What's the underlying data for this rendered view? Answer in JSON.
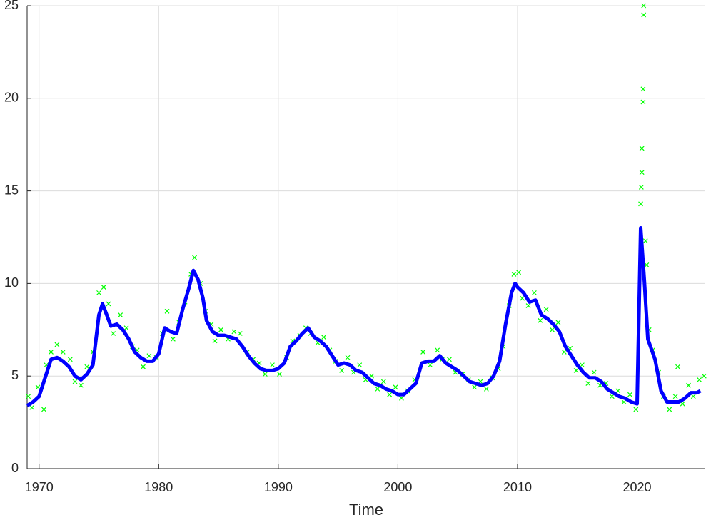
{
  "chart_data": {
    "type": "line",
    "xlabel": "Time",
    "xlim": [
      1969,
      2025.7
    ],
    "ylim": [
      0,
      25
    ],
    "xticks": [
      1970,
      1980,
      1990,
      2000,
      2010,
      2020
    ],
    "yticks": [
      0,
      5,
      10,
      15,
      20,
      25
    ],
    "grid": true,
    "series": [
      {
        "type": "scatter",
        "color": "#00ff00",
        "x": [
          1969.1,
          1969.4,
          1969.9,
          1970.4,
          1970.6,
          1971.0,
          1971.5,
          1972.0,
          1972.6,
          1973.0,
          1973.5,
          1974.0,
          1974.5,
          1975.0,
          1975.4,
          1975.8,
          1976.2,
          1976.8,
          1977.3,
          1977.8,
          1978.2,
          1978.7,
          1979.2,
          1979.8,
          1980.3,
          1980.7,
          1981.2,
          1981.7,
          1982.2,
          1982.7,
          1983.0,
          1983.5,
          1983.9,
          1984.4,
          1984.7,
          1985.2,
          1985.8,
          1986.3,
          1986.8,
          1987.4,
          1987.9,
          1988.4,
          1988.9,
          1989.5,
          1990.1,
          1990.7,
          1991.2,
          1991.8,
          1992.3,
          1992.7,
          1993.3,
          1993.8,
          1994.3,
          1994.8,
          1995.3,
          1995.8,
          1996.3,
          1996.8,
          1997.3,
          1997.8,
          1998.3,
          1998.8,
          1999.3,
          1999.8,
          2000.3,
          2000.8,
          2001.4,
          2002.1,
          2002.7,
          2003.3,
          2003.7,
          2004.3,
          2004.8,
          2005.4,
          2005.9,
          2006.4,
          2006.9,
          2007.4,
          2007.9,
          2008.4,
          2008.8,
          2009.3,
          2009.7,
          2010.1,
          2010.4,
          2010.9,
          2011.4,
          2011.9,
          2012.4,
          2012.9,
          2013.4,
          2013.9,
          2014.4,
          2014.9,
          2015.4,
          2015.9,
          2016.4,
          2016.9,
          2017.4,
          2017.9,
          2018.4,
          2018.9,
          2019.4,
          2019.9,
          2020.3,
          2020.35,
          2020.4,
          2020.4,
          2020.5,
          2020.5,
          2020.55,
          2020.55,
          2020.7,
          2020.8,
          2021.0,
          2021.3,
          2021.8,
          2022.2,
          2022.7,
          2023.2,
          2023.4,
          2023.8,
          2024.3,
          2024.7,
          2025.2,
          2025.6
        ],
        "values": [
          3.9,
          3.3,
          4.4,
          3.2,
          5.6,
          6.3,
          6.7,
          6.3,
          5.9,
          4.7,
          4.5,
          5.5,
          6.3,
          9.5,
          9.8,
          8.9,
          7.3,
          8.3,
          7.6,
          6.6,
          6.4,
          5.5,
          6.1,
          6.0,
          7.3,
          8.5,
          7.0,
          7.9,
          9.0,
          10.5,
          11.4,
          10.0,
          8.5,
          7.8,
          6.9,
          7.5,
          7.0,
          7.4,
          7.3,
          6.3,
          5.9,
          5.7,
          5.1,
          5.6,
          5.1,
          6.0,
          6.9,
          7.2,
          7.6,
          7.3,
          6.8,
          7.1,
          6.4,
          5.8,
          5.3,
          6.0,
          5.2,
          5.6,
          4.8,
          5.0,
          4.3,
          4.7,
          4.0,
          4.4,
          3.8,
          4.2,
          4.8,
          6.3,
          5.6,
          6.4,
          5.9,
          5.9,
          5.2,
          5.1,
          4.8,
          4.4,
          4.7,
          4.3,
          4.9,
          5.4,
          6.6,
          8.8,
          10.5,
          10.6,
          9.2,
          8.8,
          9.5,
          8.0,
          8.6,
          7.5,
          7.9,
          6.3,
          6.5,
          5.3,
          5.6,
          4.6,
          5.2,
          4.5,
          4.6,
          3.9,
          4.2,
          3.6,
          4.0,
          3.2,
          14.3,
          15.2,
          16.0,
          17.3,
          19.8,
          20.5,
          24.5,
          25.0,
          12.3,
          11.0,
          7.5,
          6.4,
          5.2,
          3.9,
          3.2,
          3.9,
          5.5,
          3.5,
          4.5,
          3.9,
          4.8,
          5.0
        ]
      },
      {
        "type": "line",
        "color": "#0000ff",
        "x": [
          1969.0,
          1969.5,
          1970.0,
          1970.5,
          1971.0,
          1971.5,
          1972.0,
          1972.5,
          1973.0,
          1973.5,
          1974.0,
          1974.5,
          1975.0,
          1975.3,
          1975.6,
          1976.0,
          1976.5,
          1977.0,
          1977.5,
          1978.0,
          1978.5,
          1979.0,
          1979.5,
          1980.0,
          1980.5,
          1981.0,
          1981.5,
          1982.0,
          1982.5,
          1982.9,
          1983.3,
          1983.7,
          1984.0,
          1984.5,
          1985.0,
          1985.5,
          1986.0,
          1986.5,
          1987.0,
          1987.5,
          1988.0,
          1988.5,
          1989.0,
          1989.5,
          1990.0,
          1990.5,
          1991.0,
          1991.5,
          1992.0,
          1992.5,
          1993.0,
          1993.5,
          1994.0,
          1994.5,
          1995.0,
          1995.5,
          1996.0,
          1996.5,
          1997.0,
          1997.5,
          1998.0,
          1998.5,
          1999.0,
          1999.5,
          2000.0,
          2000.5,
          2001.0,
          2001.5,
          2002.0,
          2002.5,
          2003.0,
          2003.5,
          2004.0,
          2004.5,
          2005.0,
          2005.5,
          2006.0,
          2006.5,
          2007.0,
          2007.5,
          2008.0,
          2008.5,
          2009.0,
          2009.5,
          2009.8,
          2010.0,
          2010.5,
          2011.0,
          2011.5,
          2012.0,
          2012.5,
          2013.0,
          2013.5,
          2014.0,
          2014.5,
          2015.0,
          2015.5,
          2016.0,
          2016.5,
          2017.0,
          2017.5,
          2018.0,
          2018.5,
          2019.0,
          2019.5,
          2020.0,
          2020.3,
          2020.6,
          2020.9,
          2021.5,
          2022.0,
          2022.5,
          2023.0,
          2023.5,
          2024.0,
          2024.5,
          2025.0,
          2025.3
        ],
        "values": [
          3.4,
          3.6,
          3.9,
          4.9,
          5.9,
          6.0,
          5.8,
          5.5,
          5.0,
          4.8,
          5.1,
          5.6,
          8.3,
          8.9,
          8.4,
          7.7,
          7.8,
          7.5,
          7.0,
          6.3,
          6.0,
          5.8,
          5.8,
          6.2,
          7.6,
          7.4,
          7.3,
          8.6,
          9.7,
          10.7,
          10.2,
          9.2,
          8.0,
          7.4,
          7.2,
          7.2,
          7.1,
          7.0,
          6.6,
          6.1,
          5.7,
          5.4,
          5.3,
          5.3,
          5.4,
          5.7,
          6.6,
          6.9,
          7.3,
          7.6,
          7.1,
          6.9,
          6.6,
          6.1,
          5.6,
          5.7,
          5.6,
          5.3,
          5.2,
          4.9,
          4.6,
          4.5,
          4.3,
          4.2,
          4.0,
          4.0,
          4.3,
          4.6,
          5.7,
          5.8,
          5.8,
          6.1,
          5.7,
          5.5,
          5.3,
          5.0,
          4.7,
          4.6,
          4.5,
          4.6,
          5.0,
          5.8,
          7.8,
          9.5,
          10.0,
          9.8,
          9.5,
          9.0,
          9.1,
          8.3,
          8.1,
          7.8,
          7.4,
          6.6,
          6.1,
          5.6,
          5.2,
          4.9,
          4.9,
          4.7,
          4.3,
          4.1,
          3.9,
          3.8,
          3.6,
          3.5,
          13.0,
          10.2,
          7.0,
          5.9,
          4.2,
          3.6,
          3.6,
          3.6,
          3.8,
          4.1,
          4.1,
          4.2
        ]
      }
    ]
  }
}
